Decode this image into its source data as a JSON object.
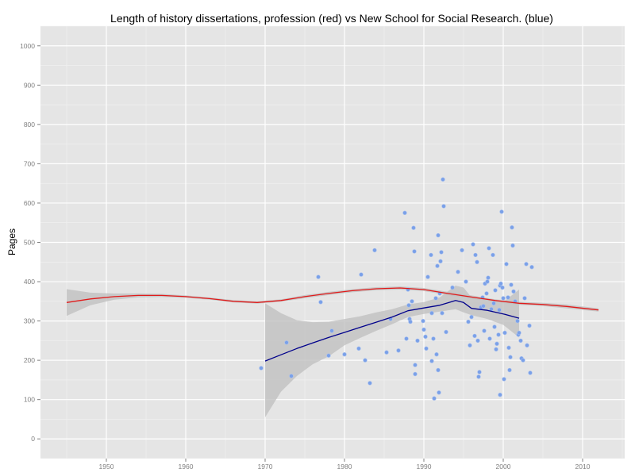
{
  "chart_data": {
    "type": "scatter",
    "title": "Length of history dissertations, profession (red) vs New School for Social Research. (blue)",
    "xlabel": "",
    "ylabel": "Pages",
    "xlim": [
      1941.7,
      2015.3
    ],
    "ylim": [
      -50,
      1050
    ],
    "xticks": [
      1950,
      1960,
      1970,
      1980,
      1990,
      2000,
      2010
    ],
    "yticks": [
      0,
      100,
      200,
      300,
      400,
      500,
      600,
      700,
      800,
      900,
      1000
    ],
    "grid": true,
    "legend": "none",
    "colors": {
      "panel": "#e5e5e5",
      "grid_major": "#ffffff",
      "grid_minor": "#f2f2f2",
      "ribbon": "#bdbdbd",
      "profession_line": "#e01b1b",
      "nssr_line": "#00008b",
      "points": "#7aa0e8"
    },
    "series": [
      {
        "name": "New School for Social Research (points)",
        "kind": "points",
        "points": [
          [
            1969.5,
            180
          ],
          [
            1972.7,
            245
          ],
          [
            1973.3,
            160
          ],
          [
            1976.7,
            412
          ],
          [
            1977.0,
            348
          ],
          [
            1978.0,
            212
          ],
          [
            1978.4,
            275
          ],
          [
            1980.0,
            215
          ],
          [
            1981.8,
            230
          ],
          [
            1982.1,
            418
          ],
          [
            1982.6,
            200
          ],
          [
            1983.2,
            142
          ],
          [
            1983.8,
            480
          ],
          [
            1985.3,
            220
          ],
          [
            1985.8,
            305
          ],
          [
            1986.8,
            225
          ],
          [
            1987.6,
            575
          ],
          [
            1987.8,
            255
          ],
          [
            1988.0,
            380
          ],
          [
            1988.1,
            340
          ],
          [
            1988.2,
            305
          ],
          [
            1988.3,
            298
          ],
          [
            1988.5,
            350
          ],
          [
            1988.7,
            537
          ],
          [
            1988.8,
            477
          ],
          [
            1988.9,
            188
          ],
          [
            1988.9,
            165
          ],
          [
            1989.2,
            250
          ],
          [
            1989.9,
            300
          ],
          [
            1990.0,
            278
          ],
          [
            1990.2,
            260
          ],
          [
            1990.3,
            230
          ],
          [
            1990.5,
            412
          ],
          [
            1990.9,
            468
          ],
          [
            1991.0,
            320
          ],
          [
            1991.0,
            198
          ],
          [
            1991.2,
            255
          ],
          [
            1991.3,
            103
          ],
          [
            1991.5,
            358
          ],
          [
            1991.6,
            215
          ],
          [
            1991.7,
            440
          ],
          [
            1991.8,
            518
          ],
          [
            1991.8,
            175
          ],
          [
            1991.9,
            118
          ],
          [
            1992.0,
            370
          ],
          [
            1992.1,
            452
          ],
          [
            1992.2,
            475
          ],
          [
            1992.3,
            320
          ],
          [
            1992.4,
            660
          ],
          [
            1992.5,
            592
          ],
          [
            1992.8,
            272
          ],
          [
            1993.6,
            385
          ],
          [
            1994.3,
            425
          ],
          [
            1994.8,
            480
          ],
          [
            1995.3,
            400
          ],
          [
            1995.6,
            298
          ],
          [
            1995.8,
            238
          ],
          [
            1996.0,
            310
          ],
          [
            1996.2,
            495
          ],
          [
            1996.5,
            468
          ],
          [
            1996.7,
            450
          ],
          [
            1996.8,
            250
          ],
          [
            1996.9,
            158
          ],
          [
            1997.0,
            170
          ],
          [
            1997.2,
            335
          ],
          [
            1997.4,
            360
          ],
          [
            1997.6,
            275
          ],
          [
            1997.7,
            395
          ],
          [
            1997.9,
            370
          ],
          [
            1998.0,
            400
          ],
          [
            1998.1,
            410
          ],
          [
            1998.2,
            485
          ],
          [
            1998.3,
            255
          ],
          [
            1998.5,
            330
          ],
          [
            1998.7,
            468
          ],
          [
            1998.8,
            345
          ],
          [
            1998.9,
            285
          ],
          [
            1999.0,
            378
          ],
          [
            1999.1,
            228
          ],
          [
            1999.2,
            242
          ],
          [
            1999.4,
            265
          ],
          [
            1999.5,
            328
          ],
          [
            1999.6,
            390
          ],
          [
            1999.7,
            395
          ],
          [
            1999.8,
            578
          ],
          [
            1999.9,
            385
          ],
          [
            2000.0,
            358
          ],
          [
            2000.2,
            270
          ],
          [
            2000.4,
            445
          ],
          [
            2000.6,
            360
          ],
          [
            2000.7,
            232
          ],
          [
            2000.8,
            175
          ],
          [
            2000.9,
            208
          ],
          [
            2001.0,
            392
          ],
          [
            2001.1,
            538
          ],
          [
            2001.2,
            492
          ],
          [
            2001.5,
            350
          ],
          [
            2001.8,
            300
          ],
          [
            2001.9,
            265
          ],
          [
            2002.0,
            270
          ],
          [
            2002.2,
            250
          ],
          [
            2002.3,
            205
          ],
          [
            2002.5,
            200
          ],
          [
            2002.7,
            358
          ],
          [
            2002.9,
            445
          ],
          [
            2003.0,
            238
          ],
          [
            2003.3,
            288
          ],
          [
            2003.4,
            168
          ],
          [
            2003.6,
            437
          ],
          [
            1999.6,
            112
          ],
          [
            2000.1,
            152
          ],
          [
            1997.5,
            338
          ],
          [
            2001.3,
            375
          ],
          [
            1996.4,
            262
          ]
        ]
      },
      {
        "name": "New School for Social Research (smooth)",
        "kind": "line",
        "color": "#00008b",
        "x": [
          1970,
          1972,
          1974,
          1976,
          1978,
          1980,
          1982,
          1984,
          1986,
          1988,
          1990,
          1992,
          1994,
          1995,
          1996,
          1998,
          2000,
          2002
        ],
        "y": [
          198,
          214,
          230,
          244,
          258,
          271,
          284,
          297,
          310,
          326,
          333,
          340,
          352,
          347,
          332,
          327,
          318,
          307
        ],
        "lower": [
          55,
          120,
          160,
          190,
          210,
          238,
          257,
          275,
          292,
          310,
          318,
          324,
          330,
          322,
          315,
          305,
          290,
          258
        ],
        "upper": [
          345,
          320,
          302,
          297,
          298,
          305,
          312,
          322,
          330,
          342,
          348,
          360,
          390,
          385,
          360,
          352,
          348,
          380
        ]
      },
      {
        "name": "Profession (smooth)",
        "kind": "line",
        "color": "#e01b1b",
        "x": [
          1945,
          1948,
          1951,
          1954,
          1957,
          1960,
          1963,
          1966,
          1969,
          1972,
          1975,
          1978,
          1981,
          1984,
          1987,
          1990,
          1993,
          1996,
          1999,
          2002,
          2005,
          2008,
          2012
        ],
        "y": [
          347,
          356,
          362,
          365,
          365,
          362,
          357,
          350,
          347,
          352,
          362,
          370,
          377,
          382,
          384,
          380,
          370,
          361,
          352,
          345,
          342,
          337,
          328
        ],
        "lower": [
          313,
          340,
          354,
          360,
          361,
          359,
          354,
          347,
          344,
          349,
          358,
          366,
          373,
          378,
          380,
          376,
          366,
          357,
          349,
          341,
          338,
          332,
          324
        ],
        "upper": [
          381,
          372,
          370,
          370,
          369,
          365,
          360,
          353,
          350,
          355,
          366,
          374,
          381,
          386,
          388,
          384,
          374,
          365,
          355,
          349,
          346,
          342,
          332
        ]
      }
    ]
  }
}
